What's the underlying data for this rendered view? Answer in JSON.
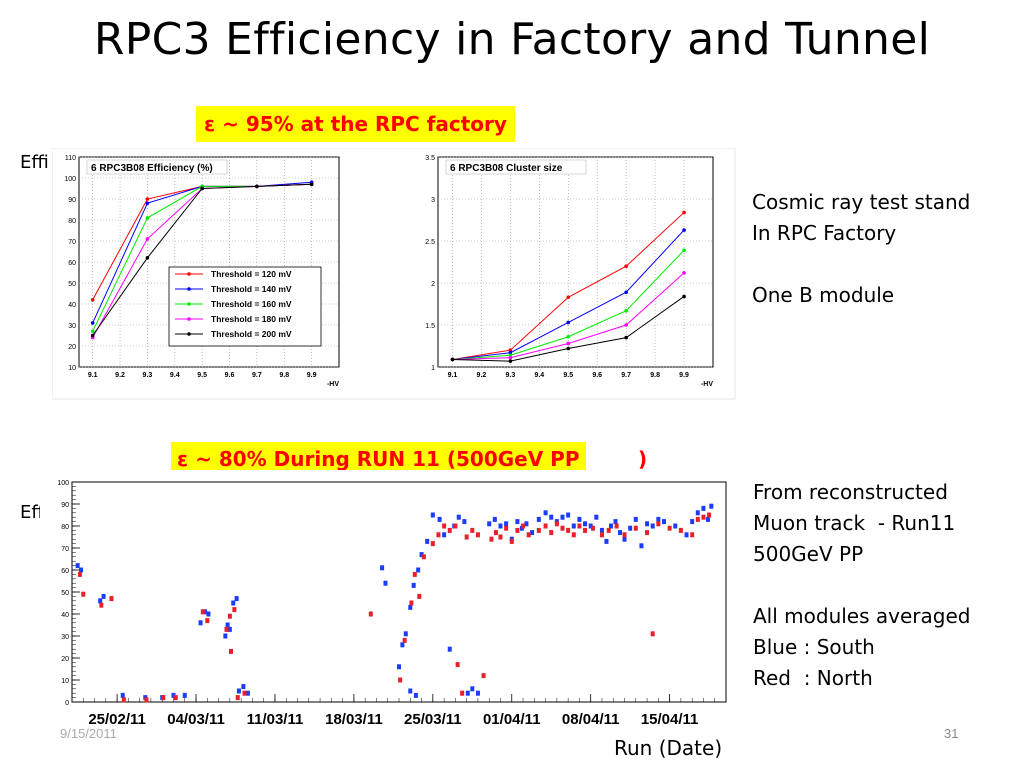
{
  "slide": {
    "title": "RPC3 Efficiency in Factory and Tunnel",
    "banner1": "ε ~ 95%  at the RPC factory",
    "banner2": "ε ~ 80%  During RUN 11 (500GeV PP",
    "banner2_tail": ")",
    "effi_label_1": "Effi",
    "effi_label_2": "Effi",
    "note1": "Cosmic ray test stand\nIn RPC Factory\n\nOne B module",
    "note2": "From reconstructed\nMuon track  - Run11\n500GeV PP\n\nAll modules averaged\nBlue : South\nRed  : North",
    "x_caption": "Run (Date)",
    "page_number": "31",
    "date_footer": "9/15/2011"
  },
  "colors": {
    "banner_bg": "#ffff00",
    "banner_text": "#ff0000",
    "series": [
      "#ff0000",
      "#0000ff",
      "#00ee00",
      "#ff00ff",
      "#000000"
    ],
    "run_blue": "#1a3cff",
    "run_red": "#e8202a"
  },
  "chart_data": [
    {
      "type": "line",
      "title": "6 RPC3B08 Efficiency (%)",
      "xlabel": "-HV",
      "x": [
        9.1,
        9.3,
        9.5,
        9.7,
        9.9
      ],
      "xticks": [
        "9.1",
        "9.2",
        "9.3",
        "9.4",
        "9.5",
        "9.6",
        "9.7",
        "9.8",
        "9.9"
      ],
      "yticks": [
        "10",
        "20",
        "30",
        "40",
        "50",
        "60",
        "70",
        "80",
        "90",
        "100",
        "110"
      ],
      "xlim": [
        9.05,
        10.0
      ],
      "ylim": [
        10,
        110
      ],
      "legend_position": "bottom-right",
      "series": [
        {
          "name": "Threshold = 120 mV",
          "values": [
            42,
            90,
            96,
            96,
            97
          ]
        },
        {
          "name": "Threshold = 140 mV",
          "values": [
            31,
            88,
            96,
            96,
            98
          ]
        },
        {
          "name": "Threshold = 160 mV",
          "values": [
            27,
            81,
            96,
            96,
            97
          ]
        },
        {
          "name": "Threshold = 180 mV",
          "values": [
            24,
            71,
            95,
            96,
            97
          ]
        },
        {
          "name": "Threshold = 200 mV",
          "values": [
            25,
            62,
            95,
            96,
            97
          ]
        }
      ]
    },
    {
      "type": "line",
      "title": "6 RPC3B08 Cluster size",
      "xlabel": "-HV",
      "x": [
        9.1,
        9.3,
        9.5,
        9.7,
        9.9
      ],
      "xticks": [
        "9.1",
        "9.2",
        "9.3",
        "9.4",
        "9.5",
        "9.6",
        "9.7",
        "9.8",
        "9.9"
      ],
      "yticks": [
        "1",
        "1.5",
        "2",
        "2.5",
        "3",
        "3.5"
      ],
      "xlim": [
        9.05,
        10.0
      ],
      "ylim": [
        1,
        3.5
      ],
      "series": [
        {
          "name": "Threshold = 120 mV",
          "values": [
            1.09,
            1.2,
            1.83,
            2.2,
            2.84
          ]
        },
        {
          "name": "Threshold = 140 mV",
          "values": [
            1.09,
            1.17,
            1.53,
            1.89,
            2.63
          ]
        },
        {
          "name": "Threshold = 160 mV",
          "values": [
            1.09,
            1.14,
            1.36,
            1.67,
            2.39
          ]
        },
        {
          "name": "Threshold = 180 mV",
          "values": [
            1.09,
            1.11,
            1.28,
            1.5,
            2.12
          ]
        },
        {
          "name": "Threshold = 200 mV",
          "values": [
            1.09,
            1.07,
            1.22,
            1.35,
            1.84
          ]
        }
      ]
    },
    {
      "type": "scatter",
      "xlabel": "Run (Date)",
      "ylabel": "Effi",
      "xticks": [
        "25/02/11",
        "04/03/11",
        "11/03/11",
        "18/03/11",
        "25/03/11",
        "01/04/11",
        "08/04/11",
        "15/04/11"
      ],
      "xlim": [
        -4,
        54
      ],
      "ylim": [
        0,
        100
      ],
      "yticks": [
        "0",
        "10",
        "20",
        "30",
        "40",
        "50",
        "60",
        "70",
        "80",
        "90",
        "100"
      ],
      "series": [
        {
          "name": "South",
          "points": [
            [
              -3.5,
              62
            ],
            [
              -3.2,
              60
            ],
            [
              -1.5,
              46
            ],
            [
              -1.2,
              48
            ],
            [
              0.5,
              3
            ],
            [
              2.5,
              2
            ],
            [
              4,
              2
            ],
            [
              5,
              3
            ],
            [
              6,
              3
            ],
            [
              7.4,
              36
            ],
            [
              7.8,
              41
            ],
            [
              8.1,
              40
            ],
            [
              9.6,
              30
            ],
            [
              9.8,
              35
            ],
            [
              10,
              33
            ],
            [
              10.3,
              45
            ],
            [
              10.6,
              47
            ],
            [
              10.8,
              5
            ],
            [
              11.2,
              7
            ],
            [
              11.6,
              4
            ],
            [
              23.5,
              61
            ],
            [
              23.8,
              54
            ],
            [
              25,
              16
            ],
            [
              25.3,
              26
            ],
            [
              25.6,
              31
            ],
            [
              26,
              43
            ],
            [
              26.3,
              53
            ],
            [
              26.7,
              60
            ],
            [
              27,
              67
            ],
            [
              26,
              5
            ],
            [
              26.5,
              3
            ],
            [
              27.5,
              73
            ],
            [
              28,
              85
            ],
            [
              28.6,
              83
            ],
            [
              29,
              76
            ],
            [
              29.5,
              24
            ],
            [
              29.9,
              80
            ],
            [
              30.3,
              84
            ],
            [
              30.8,
              82
            ],
            [
              31.1,
              4
            ],
            [
              31.5,
              6
            ],
            [
              32,
              4
            ],
            [
              33,
              81
            ],
            [
              33.5,
              83
            ],
            [
              34,
              80
            ],
            [
              34.5,
              81
            ],
            [
              35,
              74
            ],
            [
              35.5,
              82
            ],
            [
              35.9,
              79
            ],
            [
              36.3,
              81
            ],
            [
              36.8,
              77
            ],
            [
              37.4,
              83
            ],
            [
              38,
              86
            ],
            [
              38.5,
              84
            ],
            [
              39,
              82
            ],
            [
              39.5,
              84
            ],
            [
              40,
              85
            ],
            [
              40.5,
              80
            ],
            [
              41,
              83
            ],
            [
              41.5,
              81
            ],
            [
              42,
              80
            ],
            [
              42.5,
              84
            ],
            [
              43,
              78
            ],
            [
              43.4,
              73
            ],
            [
              43.8,
              80
            ],
            [
              44.2,
              82
            ],
            [
              44.6,
              77
            ],
            [
              45,
              74
            ],
            [
              45.5,
              79
            ],
            [
              46,
              83
            ],
            [
              46.5,
              71
            ],
            [
              47,
              81
            ],
            [
              47.5,
              80
            ],
            [
              48,
              83
            ],
            [
              48.5,
              82
            ],
            [
              49.5,
              80
            ],
            [
              50.5,
              76
            ],
            [
              51,
              82
            ],
            [
              51.5,
              86
            ],
            [
              52,
              88
            ],
            [
              52.4,
              83
            ],
            [
              52.7,
              89
            ]
          ]
        },
        {
          "name": "North",
          "points": [
            [
              -3.3,
              58
            ],
            [
              -3,
              49
            ],
            [
              -1.4,
              44
            ],
            [
              -0.5,
              47
            ],
            [
              0.6,
              1
            ],
            [
              2.6,
              1
            ],
            [
              4.1,
              2
            ],
            [
              5.2,
              2
            ],
            [
              7.6,
              41
            ],
            [
              8,
              37
            ],
            [
              9.7,
              33
            ],
            [
              10,
              39
            ],
            [
              10.1,
              23
            ],
            [
              10.4,
              42
            ],
            [
              10.7,
              2
            ],
            [
              11.3,
              4
            ],
            [
              22.5,
              40
            ],
            [
              25.1,
              10
            ],
            [
              25.5,
              28
            ],
            [
              26.1,
              45
            ],
            [
              26.4,
              58
            ],
            [
              26.8,
              48
            ],
            [
              27.2,
              66
            ],
            [
              28,
              72
            ],
            [
              28.5,
              76
            ],
            [
              29,
              80
            ],
            [
              29.5,
              78
            ],
            [
              30,
              80
            ],
            [
              30.2,
              17
            ],
            [
              30.6,
              4
            ],
            [
              31,
              75
            ],
            [
              31.5,
              78
            ],
            [
              32,
              76
            ],
            [
              32.5,
              12
            ],
            [
              33.2,
              74
            ],
            [
              33.6,
              77
            ],
            [
              34,
              75
            ],
            [
              34.5,
              79
            ],
            [
              35,
              73
            ],
            [
              35.5,
              78
            ],
            [
              36,
              80
            ],
            [
              36.5,
              76
            ],
            [
              37.4,
              78
            ],
            [
              38,
              80
            ],
            [
              38.5,
              77
            ],
            [
              39,
              81
            ],
            [
              39.5,
              79
            ],
            [
              40,
              78
            ],
            [
              40.5,
              76
            ],
            [
              41,
              80
            ],
            [
              41.5,
              78
            ],
            [
              42.2,
              79
            ],
            [
              43,
              76
            ],
            [
              43.6,
              78
            ],
            [
              44.3,
              80
            ],
            [
              45,
              76
            ],
            [
              46,
              79
            ],
            [
              47,
              77
            ],
            [
              47.5,
              31
            ],
            [
              48,
              81
            ],
            [
              49,
              79
            ],
            [
              50,
              78
            ],
            [
              51,
              76
            ],
            [
              51.5,
              83
            ],
            [
              52,
              84
            ],
            [
              52.5,
              85
            ]
          ]
        }
      ]
    }
  ]
}
